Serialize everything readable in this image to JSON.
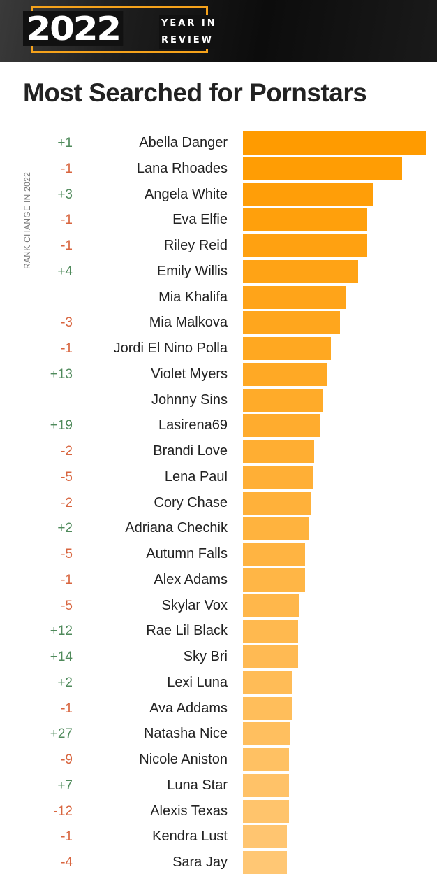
{
  "header": {
    "year": "2022",
    "tagline_line1": "YEAR IN",
    "tagline_line2": "REVIEW"
  },
  "chart_data": {
    "type": "bar",
    "orientation": "horizontal",
    "title": "Most Searched for Pornstars",
    "ylabel": "RANK CHANGE IN 2022",
    "value_note": "relative bar length, top = 100 (no axis shown)",
    "colors": {
      "bar_start": "#ff9b00",
      "bar_end": "#ffc774",
      "positive": "#4f8a5b",
      "negative": "#d8653f"
    },
    "categories": [
      "Abella Danger",
      "Lana Rhoades",
      "Angela White",
      "Eva Elfie",
      "Riley Reid",
      "Emily Willis",
      "Mia Khalifa",
      "Mia Malkova",
      "Jordi El Nino Polla",
      "Violet Myers",
      "Johnny Sins",
      "Lasirena69",
      "Brandi Love",
      "Lena Paul",
      "Cory Chase",
      "Adriana Chechik",
      "Autumn Falls",
      "Alex Adams",
      "Skylar Vox",
      "Rae Lil Black",
      "Sky Bri",
      "Lexi Luna",
      "Ava Addams",
      "Natasha Nice",
      "Nicole Aniston",
      "Luna Star",
      "Alexis Texas",
      "Kendra Lust",
      "Sara Jay"
    ],
    "rank_change": [
      "+1",
      "-1",
      "+3",
      "-1",
      "-1",
      "+4",
      "",
      "-3",
      "-1",
      "+13",
      "",
      "+19",
      "-2",
      "-5",
      "-2",
      "+2",
      "-5",
      "-1",
      "-5",
      "+12",
      "+14",
      "+2",
      "-1",
      "+27",
      "-9",
      "+7",
      "-12",
      "-1",
      "-4"
    ],
    "values": [
      100,
      87,
      71,
      68,
      68,
      63,
      56,
      53,
      48,
      46,
      44,
      42,
      39,
      38,
      37,
      36,
      34,
      34,
      31,
      30,
      30,
      27,
      27,
      26,
      25,
      25,
      25,
      24,
      24
    ]
  }
}
